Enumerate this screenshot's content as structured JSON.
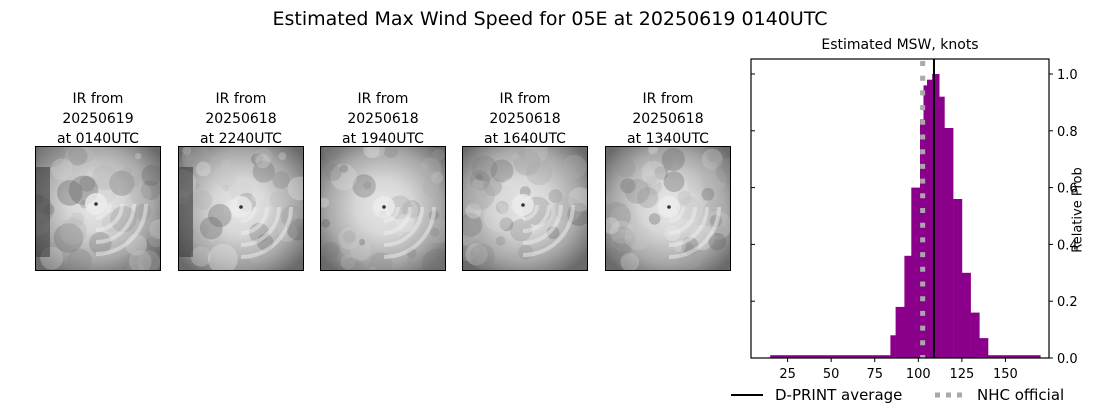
{
  "figure": {
    "title": "Estimated Max Wind Speed for 05E at 20250619 0140UTC"
  },
  "ir_panels": [
    {
      "caption": "IR from\n20250619\nat 0140UTC",
      "seed": 1,
      "eye": [
        60,
        57
      ],
      "dark_left": true
    },
    {
      "caption": "IR from\n20250618\nat 2240UTC",
      "seed": 2,
      "eye": [
        62,
        60
      ],
      "dark_left": true
    },
    {
      "caption": "IR from\n20250618\nat 1940UTC",
      "seed": 3,
      "eye": [
        63,
        60
      ],
      "dark_left": false
    },
    {
      "caption": "IR from\n20250618\nat 1640UTC",
      "seed": 4,
      "eye": [
        60,
        58
      ],
      "dark_left": false
    },
    {
      "caption": "IR from\n20250618\nat 1340UTC",
      "seed": 5,
      "eye": [
        63,
        60
      ],
      "dark_left": false
    }
  ],
  "chart_data": {
    "type": "bar",
    "title": "Estimated MSW, knots",
    "xlabel": "",
    "ylabel": "Relative Prob",
    "xlim": [
      4,
      175
    ],
    "ylim": [
      0,
      1.05
    ],
    "xticks": [
      25,
      50,
      75,
      100,
      125,
      150
    ],
    "yticks": [
      0.0,
      0.2,
      0.4,
      0.6,
      0.8,
      1.0
    ],
    "bar_color": "#8b008b",
    "bins": [
      {
        "x0": 15,
        "x1": 84,
        "value": 0.01
      },
      {
        "x0": 84,
        "x1": 87,
        "value": 0.08
      },
      {
        "x0": 87,
        "x1": 92,
        "value": 0.18
      },
      {
        "x0": 92,
        "x1": 96,
        "value": 0.36
      },
      {
        "x0": 96,
        "x1": 101,
        "value": 0.6
      },
      {
        "x0": 101,
        "x1": 103,
        "value": 0.84
      },
      {
        "x0": 103,
        "x1": 105,
        "value": 0.96
      },
      {
        "x0": 105,
        "x1": 108,
        "value": 0.98
      },
      {
        "x0": 108,
        "x1": 112,
        "value": 1.0
      },
      {
        "x0": 112,
        "x1": 115,
        "value": 0.92
      },
      {
        "x0": 115,
        "x1": 120,
        "value": 0.81
      },
      {
        "x0": 120,
        "x1": 125,
        "value": 0.56
      },
      {
        "x0": 125,
        "x1": 130,
        "value": 0.3
      },
      {
        "x0": 130,
        "x1": 135,
        "value": 0.16
      },
      {
        "x0": 135,
        "x1": 140,
        "value": 0.07
      },
      {
        "x0": 140,
        "x1": 170,
        "value": 0.01
      }
    ],
    "vlines": [
      {
        "name": "D-PRINT average",
        "x": 109,
        "color": "#000000",
        "style": "solid"
      },
      {
        "name": "NHC official",
        "x": 102.5,
        "color": "#a9a9a9",
        "style": "dotted"
      }
    ],
    "legend": [
      {
        "label": "D-PRINT average",
        "style": "solid",
        "color": "#000000"
      },
      {
        "label": "NHC official",
        "style": "dotted",
        "color": "#a9a9a9"
      }
    ],
    "legend_position": "below"
  }
}
